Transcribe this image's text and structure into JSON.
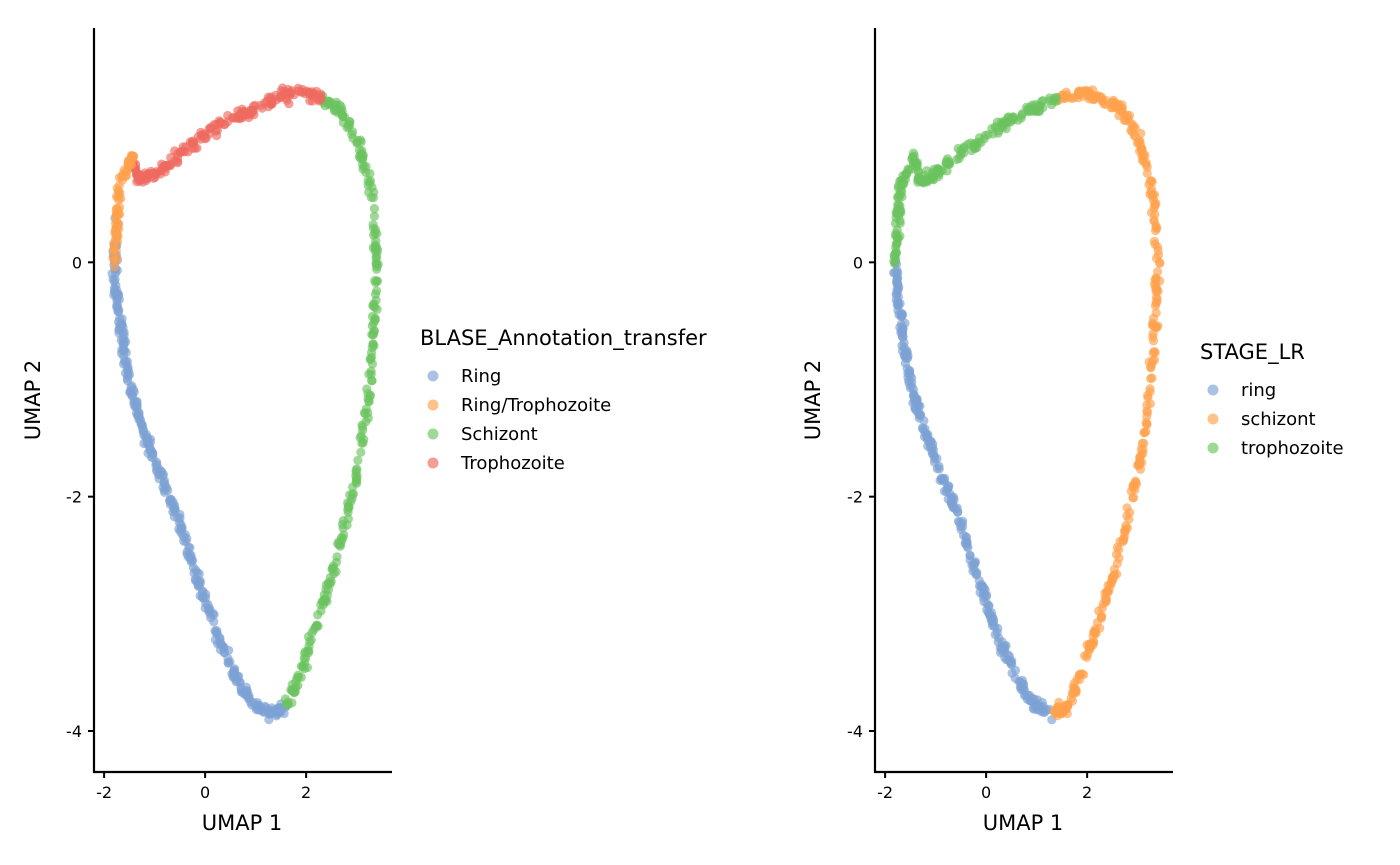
{
  "chart_data": [
    {
      "type": "scatter",
      "xlabel": "UMAP 1",
      "ylabel": "UMAP 2",
      "xlim": [
        -2.2,
        3.7
      ],
      "ylim": [
        -4.35,
        2.0
      ],
      "x_ticks": [
        -2,
        0,
        2
      ],
      "y_ticks": [
        -4,
        -2,
        0
      ],
      "x_tick_labels": [
        "-2",
        "0",
        "2"
      ],
      "y_tick_labels": [
        "-4",
        "-2",
        "0"
      ],
      "grid": false,
      "legend": {
        "title": "BLASE_Annotation_transfer",
        "placement": "right",
        "entries": [
          "Ring",
          "Ring/Trophozoite",
          "Schizont",
          "Trophozoite"
        ]
      },
      "colors": {
        "Ring": "#7DA2D4",
        "Ring/Trophozoite": "#FFA24D",
        "Schizont": "#6CC360",
        "Trophozoite": "#EE6A60"
      },
      "point_opacity": 0.65,
      "trajectory": [
        [
          -1.45,
          0.9
        ],
        [
          -1.7,
          0.65
        ],
        [
          -1.75,
          0.35
        ],
        [
          -1.8,
          0.0
        ],
        [
          -1.75,
          -0.3
        ],
        [
          -1.65,
          -0.6
        ],
        [
          -1.55,
          -0.9
        ],
        [
          -1.4,
          -1.2
        ],
        [
          -1.2,
          -1.45
        ],
        [
          -1.0,
          -1.7
        ],
        [
          -0.7,
          -2.0
        ],
        [
          -0.45,
          -2.3
        ],
        [
          -0.2,
          -2.65
        ],
        [
          0.05,
          -2.95
        ],
        [
          0.3,
          -3.25
        ],
        [
          0.6,
          -3.55
        ],
        [
          0.9,
          -3.75
        ],
        [
          1.3,
          -3.85
        ],
        [
          1.6,
          -3.8
        ],
        [
          1.9,
          -3.5
        ],
        [
          2.2,
          -3.1
        ],
        [
          2.5,
          -2.7
        ],
        [
          2.8,
          -2.2
        ],
        [
          3.05,
          -1.7
        ],
        [
          3.25,
          -1.1
        ],
        [
          3.35,
          -0.5
        ],
        [
          3.4,
          0.0
        ],
        [
          3.3,
          0.6
        ],
        [
          3.05,
          1.0
        ],
        [
          2.7,
          1.3
        ],
        [
          2.3,
          1.4
        ],
        [
          1.9,
          1.45
        ],
        [
          1.4,
          1.4
        ],
        [
          0.9,
          1.3
        ],
        [
          0.4,
          1.2
        ],
        [
          -0.1,
          1.05
        ],
        [
          -0.6,
          0.9
        ],
        [
          -1.0,
          0.75
        ],
        [
          -1.3,
          0.7
        ],
        [
          -1.45,
          0.9
        ]
      ],
      "segments": [
        {
          "name": "Ring",
          "range": [
            2,
            18
          ]
        },
        {
          "name": "Schizont",
          "range": [
            18,
            30
          ]
        },
        {
          "name": "Trophozoite",
          "range": [
            30,
            39
          ]
        },
        {
          "name": "Ring/Trophozoite",
          "range": [
            0,
            3
          ]
        }
      ]
    },
    {
      "type": "scatter",
      "xlabel": "UMAP 1",
      "ylabel": "UMAP 2",
      "xlim": [
        -2.2,
        3.7
      ],
      "ylim": [
        -4.35,
        2.0
      ],
      "x_ticks": [
        -2,
        0,
        2
      ],
      "y_ticks": [
        -4,
        -2,
        0
      ],
      "x_tick_labels": [
        "-2",
        "0",
        "2"
      ],
      "y_tick_labels": [
        "-4",
        "-2",
        "0"
      ],
      "grid": false,
      "legend": {
        "title": "STAGE_LR",
        "placement": "right",
        "entries": [
          "ring",
          "schizont",
          "trophozoite"
        ]
      },
      "colors": {
        "ring": "#7DA2D4",
        "schizont": "#FFA24D",
        "trophozoite": "#6CC360"
      },
      "point_opacity": 0.65,
      "trajectory": [
        [
          -1.45,
          0.9
        ],
        [
          -1.7,
          0.65
        ],
        [
          -1.75,
          0.35
        ],
        [
          -1.8,
          0.0
        ],
        [
          -1.75,
          -0.3
        ],
        [
          -1.65,
          -0.6
        ],
        [
          -1.55,
          -0.9
        ],
        [
          -1.4,
          -1.2
        ],
        [
          -1.2,
          -1.45
        ],
        [
          -1.0,
          -1.7
        ],
        [
          -0.7,
          -2.0
        ],
        [
          -0.45,
          -2.3
        ],
        [
          -0.2,
          -2.65
        ],
        [
          0.05,
          -2.95
        ],
        [
          0.3,
          -3.25
        ],
        [
          0.6,
          -3.55
        ],
        [
          0.9,
          -3.75
        ],
        [
          1.3,
          -3.85
        ],
        [
          1.6,
          -3.8
        ],
        [
          1.9,
          -3.5
        ],
        [
          2.2,
          -3.1
        ],
        [
          2.5,
          -2.7
        ],
        [
          2.8,
          -2.2
        ],
        [
          3.05,
          -1.7
        ],
        [
          3.25,
          -1.1
        ],
        [
          3.35,
          -0.5
        ],
        [
          3.4,
          0.0
        ],
        [
          3.3,
          0.6
        ],
        [
          3.05,
          1.0
        ],
        [
          2.7,
          1.3
        ],
        [
          2.3,
          1.4
        ],
        [
          1.9,
          1.45
        ],
        [
          1.4,
          1.4
        ],
        [
          0.9,
          1.3
        ],
        [
          0.4,
          1.2
        ],
        [
          -0.1,
          1.05
        ],
        [
          -0.6,
          0.9
        ],
        [
          -1.0,
          0.75
        ],
        [
          -1.3,
          0.7
        ],
        [
          -1.45,
          0.9
        ]
      ],
      "segments": [
        {
          "name": "ring",
          "range": [
            3,
            17
          ]
        },
        {
          "name": "schizont",
          "range": [
            17,
            32
          ]
        },
        {
          "name": "trophozoite",
          "range": [
            32,
            39
          ]
        },
        {
          "name": "trophozoite",
          "range": [
            0,
            3
          ]
        }
      ]
    }
  ]
}
